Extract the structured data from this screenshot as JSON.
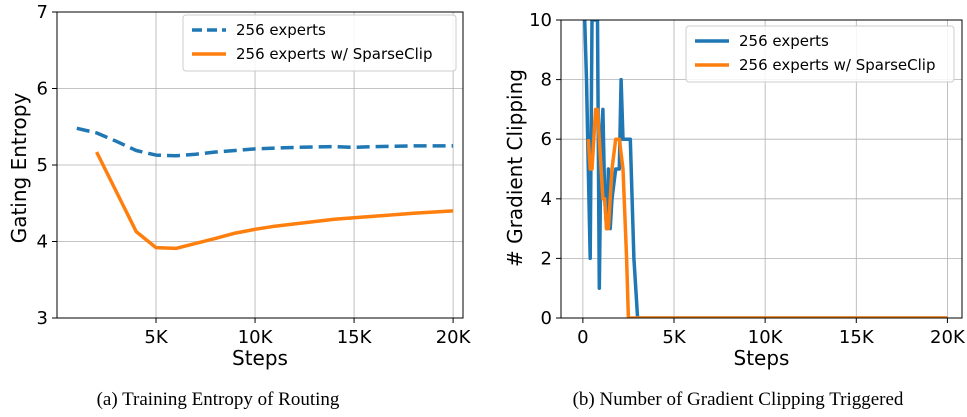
{
  "chart_data": [
    {
      "type": "line",
      "caption": "(a) Training Entropy of Routing",
      "xlabel": "Steps",
      "ylabel": "Gating Entropy",
      "xlim": [
        0,
        20500
      ],
      "ylim": [
        3,
        7
      ],
      "xticks": [
        5000,
        10000,
        15000,
        20000
      ],
      "xtick_labels": [
        "5K",
        "10K",
        "15K",
        "20K"
      ],
      "yticks": [
        3,
        4,
        5,
        6,
        7
      ],
      "ytick_labels": [
        "3",
        "4",
        "5",
        "6",
        "7"
      ],
      "grid": true,
      "legend_position": "top-right",
      "series": [
        {
          "name": "256 experts",
          "color": "#1f77b4",
          "dash": "dashed",
          "x": [
            1000,
            2000,
            3000,
            4000,
            5000,
            6000,
            7000,
            8000,
            9000,
            10000,
            12000,
            14000,
            15000,
            16000,
            18000,
            20000
          ],
          "y": [
            5.48,
            5.42,
            5.31,
            5.19,
            5.13,
            5.12,
            5.14,
            5.17,
            5.19,
            5.21,
            5.23,
            5.24,
            5.23,
            5.24,
            5.25,
            5.25
          ]
        },
        {
          "name": "256 experts w/ SparseClip",
          "color": "#ff7f0e",
          "dash": "solid",
          "x": [
            2000,
            4000,
            5000,
            6000,
            8000,
            9000,
            10000,
            11000,
            12000,
            14000,
            15000,
            16000,
            18000,
            20000
          ],
          "y": [
            5.17,
            4.13,
            3.92,
            3.91,
            4.04,
            4.11,
            4.16,
            4.2,
            4.23,
            4.29,
            4.31,
            4.33,
            4.37,
            4.4
          ]
        }
      ]
    },
    {
      "type": "line",
      "caption": "(b) Number of Gradient Clipping Triggered",
      "xlabel": "Steps",
      "ylabel": "# Gradient Clipping",
      "xlim": [
        -1200,
        20800
      ],
      "ylim": [
        0,
        10
      ],
      "xticks": [
        0,
        5000,
        10000,
        15000,
        20000
      ],
      "xtick_labels": [
        "0",
        "5K",
        "10K",
        "15K",
        "20K"
      ],
      "yticks": [
        0,
        2,
        4,
        6,
        8,
        10
      ],
      "ytick_labels": [
        "0",
        "2",
        "4",
        "6",
        "8",
        "10"
      ],
      "grid": true,
      "legend_position": "top-right",
      "series": [
        {
          "name": "256 experts",
          "color": "#1f77b4",
          "dash": "solid",
          "x": [
            100,
            200,
            300,
            400,
            500,
            600,
            700,
            800,
            900,
            1000,
            1100,
            1200,
            1300,
            1400,
            1500,
            1600,
            1800,
            2000,
            2100,
            2200,
            2400,
            2600,
            2800,
            3000,
            3200,
            5000,
            20000
          ],
          "y": [
            10,
            8,
            5,
            2,
            10,
            10,
            10,
            10,
            1,
            6,
            7,
            4,
            3,
            5,
            3,
            4,
            5,
            5,
            8,
            6,
            6,
            6,
            2,
            0,
            0,
            0,
            0
          ]
        },
        {
          "name": "256 experts w/ SparseClip",
          "color": "#ff7f0e",
          "dash": "solid",
          "x": [
            300,
            400,
            500,
            600,
            700,
            800,
            900,
            1000,
            1100,
            1200,
            1300,
            1400,
            1500,
            1600,
            1800,
            2000,
            2200,
            2400,
            2500,
            2600,
            5000,
            20000
          ],
          "y": [
            6,
            5,
            5,
            6,
            7,
            7,
            6,
            5,
            4,
            4,
            3,
            3,
            4,
            5,
            6,
            6,
            5,
            2,
            0,
            0,
            0,
            0
          ]
        }
      ]
    }
  ]
}
